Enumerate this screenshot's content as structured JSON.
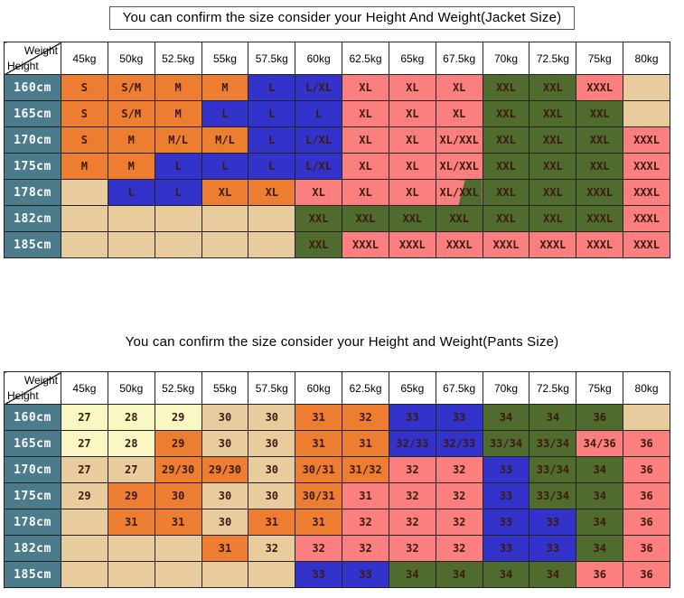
{
  "palette": {
    "tan": "#E8CC9E",
    "orange": "#ED7D31",
    "blue": "#3333CC",
    "pink": "#FC7F7F",
    "green": "#4F6B2E",
    "yellow": "#FAF8C2",
    "height_header": "#4C7B8B",
    "grid_line": "#222222",
    "cell_text": "#3B1A10"
  },
  "chart_data": [
    {
      "type": "table",
      "title": "You can confirm the size consider  your Height And Weight(Jacket Size)",
      "title_boxed": true,
      "corner": {
        "weight": "Weight",
        "height": "Height"
      },
      "columns": [
        "45kg",
        "50kg",
        "52.5kg",
        "55kg",
        "57.5kg",
        "60kg",
        "62.5kg",
        "65kg",
        "67.5kg",
        "70kg",
        "72.5kg",
        "75kg",
        "80kg"
      ],
      "row_headers": [
        "160cm",
        "165cm",
        "170cm",
        "175cm",
        "178cm",
        "182cm",
        "185cm"
      ],
      "rows": [
        [
          {
            "v": "S",
            "bg": "orange"
          },
          {
            "v": "S/M",
            "bg": "orange"
          },
          {
            "v": "M",
            "bg": "orange"
          },
          {
            "v": "M",
            "bg": "orange"
          },
          {
            "v": "L",
            "bg": "blue"
          },
          {
            "v": "L/XL",
            "bg": "blue"
          },
          {
            "v": "XL",
            "bg": "pink"
          },
          {
            "v": "XL",
            "bg": "pink"
          },
          {
            "v": "XL",
            "bg": "pink"
          },
          {
            "v": "XXL",
            "bg": "green"
          },
          {
            "v": "XXL",
            "bg": "green"
          },
          {
            "v": "XXXL",
            "bg": "pink"
          },
          {
            "v": "",
            "bg": "tan"
          }
        ],
        [
          {
            "v": "S",
            "bg": "orange"
          },
          {
            "v": "S/M",
            "bg": "orange"
          },
          {
            "v": "M",
            "bg": "orange"
          },
          {
            "v": "L",
            "bg": "blue"
          },
          {
            "v": "L",
            "bg": "blue"
          },
          {
            "v": "L",
            "bg": "blue"
          },
          {
            "v": "XL",
            "bg": "pink"
          },
          {
            "v": "XL",
            "bg": "pink"
          },
          {
            "v": "XL",
            "bg": "pink"
          },
          {
            "v": "XXL",
            "bg": "green"
          },
          {
            "v": "XXL",
            "bg": "green"
          },
          {
            "v": "XXL",
            "bg": "green"
          },
          {
            "v": "",
            "bg": "tan"
          }
        ],
        [
          {
            "v": "S",
            "bg": "orange"
          },
          {
            "v": "M",
            "bg": "orange"
          },
          {
            "v": "M/L",
            "bg": "orange"
          },
          {
            "v": "M/L",
            "bg": "orange"
          },
          {
            "v": "L",
            "bg": "blue"
          },
          {
            "v": "L/XL",
            "bg": "blue"
          },
          {
            "v": "XL",
            "bg": "pink"
          },
          {
            "v": "XL",
            "bg": "pink"
          },
          {
            "v": "XL/XXL",
            "bg": "pink"
          },
          {
            "v": "XXL",
            "bg": "green"
          },
          {
            "v": "XXL",
            "bg": "green"
          },
          {
            "v": "XXL",
            "bg": "green"
          },
          {
            "v": "XXXL",
            "bg": "pink"
          }
        ],
        [
          {
            "v": "M",
            "bg": "orange"
          },
          {
            "v": "M",
            "bg": "orange"
          },
          {
            "v": "L",
            "bg": "blue"
          },
          {
            "v": "L",
            "bg": "blue"
          },
          {
            "v": "L",
            "bg": "blue"
          },
          {
            "v": "L/XL",
            "bg": "blue"
          },
          {
            "v": "XL",
            "bg": "pink"
          },
          {
            "v": "XL",
            "bg": "pink"
          },
          {
            "v": "XL/XXL",
            "bg": "pink"
          },
          {
            "v": "XXL",
            "bg": "green"
          },
          {
            "v": "XXL",
            "bg": "green"
          },
          {
            "v": "XXL",
            "bg": "green"
          },
          {
            "v": "XXXL",
            "bg": "pink"
          }
        ],
        [
          {
            "v": "",
            "bg": "tan"
          },
          {
            "v": "L",
            "bg": "blue"
          },
          {
            "v": "L",
            "bg": "blue"
          },
          {
            "v": "XL",
            "bg": "orange"
          },
          {
            "v": "XL",
            "bg": "orange"
          },
          {
            "v": "XL",
            "bg": "pink"
          },
          {
            "v": "XL",
            "bg": "pink"
          },
          {
            "v": "XL",
            "bg": "pink"
          },
          {
            "v": "XL/XXL",
            "bg": "split"
          },
          {
            "v": "XXL",
            "bg": "green"
          },
          {
            "v": "XXL",
            "bg": "green"
          },
          {
            "v": "XXXL",
            "bg": "green"
          },
          {
            "v": "XXXL",
            "bg": "pink"
          }
        ],
        [
          {
            "v": "",
            "bg": "tan"
          },
          {
            "v": "",
            "bg": "tan"
          },
          {
            "v": "",
            "bg": "tan"
          },
          {
            "v": "",
            "bg": "tan"
          },
          {
            "v": "",
            "bg": "tan"
          },
          {
            "v": "XXL",
            "bg": "green"
          },
          {
            "v": "XXL",
            "bg": "green"
          },
          {
            "v": "XXL",
            "bg": "green"
          },
          {
            "v": "XXL",
            "bg": "green"
          },
          {
            "v": "XXL",
            "bg": "green"
          },
          {
            "v": "XXL",
            "bg": "green"
          },
          {
            "v": "XXXL",
            "bg": "green"
          },
          {
            "v": "XXXL",
            "bg": "pink"
          }
        ],
        [
          {
            "v": "",
            "bg": "tan"
          },
          {
            "v": "",
            "bg": "tan"
          },
          {
            "v": "",
            "bg": "tan"
          },
          {
            "v": "",
            "bg": "tan"
          },
          {
            "v": "",
            "bg": "tan"
          },
          {
            "v": "XXL",
            "bg": "green"
          },
          {
            "v": "XXXL",
            "bg": "pink"
          },
          {
            "v": "XXXL",
            "bg": "pink"
          },
          {
            "v": "XXXL",
            "bg": "pink"
          },
          {
            "v": "XXXL",
            "bg": "pink"
          },
          {
            "v": "XXXL",
            "bg": "pink"
          },
          {
            "v": "XXXL",
            "bg": "pink"
          },
          {
            "v": "XXXL",
            "bg": "pink"
          }
        ]
      ]
    },
    {
      "type": "table",
      "title": "You can confirm the size consider your Height and Weight(Pants Size)",
      "title_boxed": false,
      "corner": {
        "weight": "Weight",
        "height": "Height"
      },
      "columns": [
        "45kg",
        "50kg",
        "52.5kg",
        "55kg",
        "57.5kg",
        "60kg",
        "62.5kg",
        "65kg",
        "67.5kg",
        "70kg",
        "72.5kg",
        "75kg",
        "80kg"
      ],
      "row_headers": [
        "160cm",
        "165cm",
        "170cm",
        "175cm",
        "178cm",
        "182cm",
        "185cm"
      ],
      "rows": [
        [
          {
            "v": "27",
            "bg": "yellow"
          },
          {
            "v": "28",
            "bg": "yellow"
          },
          {
            "v": "29",
            "bg": "yellow"
          },
          {
            "v": "30",
            "bg": "tan"
          },
          {
            "v": "30",
            "bg": "tan"
          },
          {
            "v": "31",
            "bg": "orange"
          },
          {
            "v": "32",
            "bg": "orange"
          },
          {
            "v": "33",
            "bg": "blue"
          },
          {
            "v": "33",
            "bg": "blue"
          },
          {
            "v": "34",
            "bg": "green"
          },
          {
            "v": "34",
            "bg": "green"
          },
          {
            "v": "36",
            "bg": "green"
          },
          {
            "v": "",
            "bg": "tan"
          }
        ],
        [
          {
            "v": "27",
            "bg": "yellow"
          },
          {
            "v": "28",
            "bg": "yellow"
          },
          {
            "v": "29",
            "bg": "orange"
          },
          {
            "v": "30",
            "bg": "tan"
          },
          {
            "v": "30",
            "bg": "tan"
          },
          {
            "v": "31",
            "bg": "orange"
          },
          {
            "v": "31",
            "bg": "orange"
          },
          {
            "v": "32/33",
            "bg": "blue"
          },
          {
            "v": "32/33",
            "bg": "blue"
          },
          {
            "v": "33/34",
            "bg": "green"
          },
          {
            "v": "33/34",
            "bg": "green"
          },
          {
            "v": "34/36",
            "bg": "pink"
          },
          {
            "v": "36",
            "bg": "pink"
          }
        ],
        [
          {
            "v": "27",
            "bg": "tan"
          },
          {
            "v": "27",
            "bg": "tan"
          },
          {
            "v": "29/30",
            "bg": "orange"
          },
          {
            "v": "29/30",
            "bg": "orange"
          },
          {
            "v": "30",
            "bg": "tan"
          },
          {
            "v": "30/31",
            "bg": "orange"
          },
          {
            "v": "31/32",
            "bg": "orange"
          },
          {
            "v": "32",
            "bg": "pink"
          },
          {
            "v": "32",
            "bg": "pink"
          },
          {
            "v": "33",
            "bg": "blue"
          },
          {
            "v": "33/34",
            "bg": "green"
          },
          {
            "v": "34",
            "bg": "green"
          },
          {
            "v": "36",
            "bg": "pink"
          }
        ],
        [
          {
            "v": "29",
            "bg": "tan"
          },
          {
            "v": "29",
            "bg": "orange"
          },
          {
            "v": "30",
            "bg": "orange"
          },
          {
            "v": "30",
            "bg": "tan"
          },
          {
            "v": "30",
            "bg": "tan"
          },
          {
            "v": "30/31",
            "bg": "orange"
          },
          {
            "v": "31",
            "bg": "pink"
          },
          {
            "v": "32",
            "bg": "pink"
          },
          {
            "v": "32",
            "bg": "pink"
          },
          {
            "v": "33",
            "bg": "blue"
          },
          {
            "v": "33/34",
            "bg": "green"
          },
          {
            "v": "34",
            "bg": "green"
          },
          {
            "v": "36",
            "bg": "pink"
          }
        ],
        [
          {
            "v": "",
            "bg": "tan"
          },
          {
            "v": "31",
            "bg": "orange"
          },
          {
            "v": "31",
            "bg": "orange"
          },
          {
            "v": "30",
            "bg": "tan"
          },
          {
            "v": "31",
            "bg": "orange"
          },
          {
            "v": "31",
            "bg": "orange"
          },
          {
            "v": "32",
            "bg": "pink"
          },
          {
            "v": "32",
            "bg": "pink"
          },
          {
            "v": "32",
            "bg": "pink"
          },
          {
            "v": "33",
            "bg": "blue"
          },
          {
            "v": "33",
            "bg": "blue"
          },
          {
            "v": "34",
            "bg": "green"
          },
          {
            "v": "36",
            "bg": "pink"
          }
        ],
        [
          {
            "v": "",
            "bg": "tan"
          },
          {
            "v": "",
            "bg": "tan"
          },
          {
            "v": "",
            "bg": "tan"
          },
          {
            "v": "31",
            "bg": "orange"
          },
          {
            "v": "32",
            "bg": "tan"
          },
          {
            "v": "32",
            "bg": "pink"
          },
          {
            "v": "32",
            "bg": "pink"
          },
          {
            "v": "32",
            "bg": "pink"
          },
          {
            "v": "32",
            "bg": "pink"
          },
          {
            "v": "33",
            "bg": "blue"
          },
          {
            "v": "33",
            "bg": "blue"
          },
          {
            "v": "34",
            "bg": "green"
          },
          {
            "v": "36",
            "bg": "pink"
          }
        ],
        [
          {
            "v": "",
            "bg": "tan"
          },
          {
            "v": "",
            "bg": "tan"
          },
          {
            "v": "",
            "bg": "tan"
          },
          {
            "v": "",
            "bg": "tan"
          },
          {
            "v": "",
            "bg": "tan"
          },
          {
            "v": "33",
            "bg": "blue"
          },
          {
            "v": "33",
            "bg": "blue"
          },
          {
            "v": "34",
            "bg": "green"
          },
          {
            "v": "34",
            "bg": "green"
          },
          {
            "v": "34",
            "bg": "green"
          },
          {
            "v": "34",
            "bg": "green"
          },
          {
            "v": "36",
            "bg": "pink"
          },
          {
            "v": "36",
            "bg": "pink"
          }
        ]
      ]
    }
  ]
}
